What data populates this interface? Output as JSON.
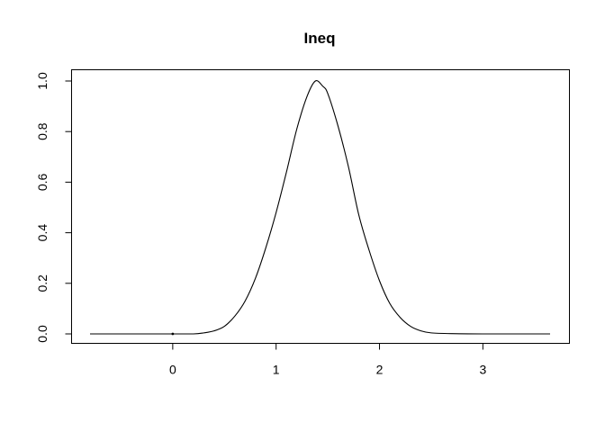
{
  "chart_data": {
    "type": "line",
    "title": "Ineq",
    "xlabel": "",
    "ylabel": "",
    "xlim": [
      -0.8,
      3.65
    ],
    "ylim": [
      0,
      1
    ],
    "x_ticks": [
      0,
      1,
      2,
      3
    ],
    "x_tick_labels": [
      "0",
      "1",
      "2",
      "3"
    ],
    "y_ticks": [
      0,
      0.2,
      0.4,
      0.6,
      0.8,
      1
    ],
    "y_tick_labels": [
      "0.0",
      "0.2",
      "0.4",
      "0.6",
      "0.8",
      "1.0"
    ],
    "grid": false,
    "legend": "none",
    "line_color": "#000000",
    "series": [
      {
        "points": [
          [
            -0.8,
            0.0
          ],
          [
            -0.4,
            0.0
          ],
          [
            0.0,
            0.0
          ],
          [
            0.2,
            0.0
          ],
          [
            0.3,
            0.004
          ],
          [
            0.4,
            0.012
          ],
          [
            0.5,
            0.03
          ],
          [
            0.6,
            0.07
          ],
          [
            0.7,
            0.13
          ],
          [
            0.8,
            0.22
          ],
          [
            0.9,
            0.34
          ],
          [
            1.0,
            0.48
          ],
          [
            1.1,
            0.64
          ],
          [
            1.2,
            0.81
          ],
          [
            1.3,
            0.94
          ],
          [
            1.38,
            1.0
          ],
          [
            1.45,
            0.98
          ],
          [
            1.5,
            0.95
          ],
          [
            1.6,
            0.82
          ],
          [
            1.7,
            0.66
          ],
          [
            1.8,
            0.47
          ],
          [
            1.9,
            0.33
          ],
          [
            2.0,
            0.21
          ],
          [
            2.1,
            0.12
          ],
          [
            2.2,
            0.065
          ],
          [
            2.3,
            0.03
          ],
          [
            2.4,
            0.012
          ],
          [
            2.5,
            0.004
          ],
          [
            2.7,
            0.001
          ],
          [
            3.0,
            0.0
          ],
          [
            3.65,
            0.0
          ]
        ]
      }
    ],
    "marker_points": [
      [
        0.0,
        0.0
      ]
    ]
  }
}
